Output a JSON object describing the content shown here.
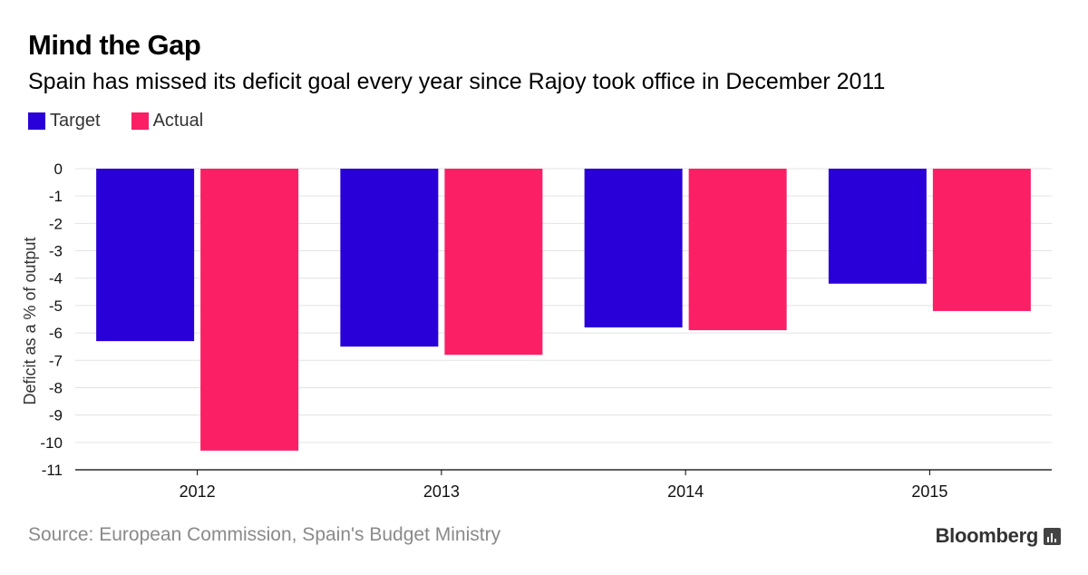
{
  "header": {
    "title": "Mind the Gap",
    "subtitle": "Spain has missed its deficit goal every year since Rajoy took office in December 2011"
  },
  "colors": {
    "target": "#2a00d9",
    "actual": "#fb1f66",
    "grid": "#e3e3e3",
    "axis": "#000000"
  },
  "footer": {
    "source": "Source: European Commission, Spain's Budget Ministry",
    "brand": "Bloomberg",
    "brand_icon": "bloomberg-chart-icon"
  },
  "chart_data": {
    "type": "bar",
    "categories": [
      "2012",
      "2013",
      "2014",
      "2015"
    ],
    "series": [
      {
        "name": "Target",
        "values": [
          -6.3,
          -6.5,
          -5.8,
          -4.2
        ]
      },
      {
        "name": "Actual",
        "values": [
          -10.3,
          -6.8,
          -5.9,
          -5.2
        ]
      }
    ],
    "ylabel": "Deficit as a % of output",
    "ylim": [
      -11,
      0
    ],
    "yticks": [
      0,
      -1,
      -2,
      -3,
      -4,
      -5,
      -6,
      -7,
      -8,
      -9,
      -10,
      -11
    ],
    "grid": true,
    "legend": "top-left"
  }
}
